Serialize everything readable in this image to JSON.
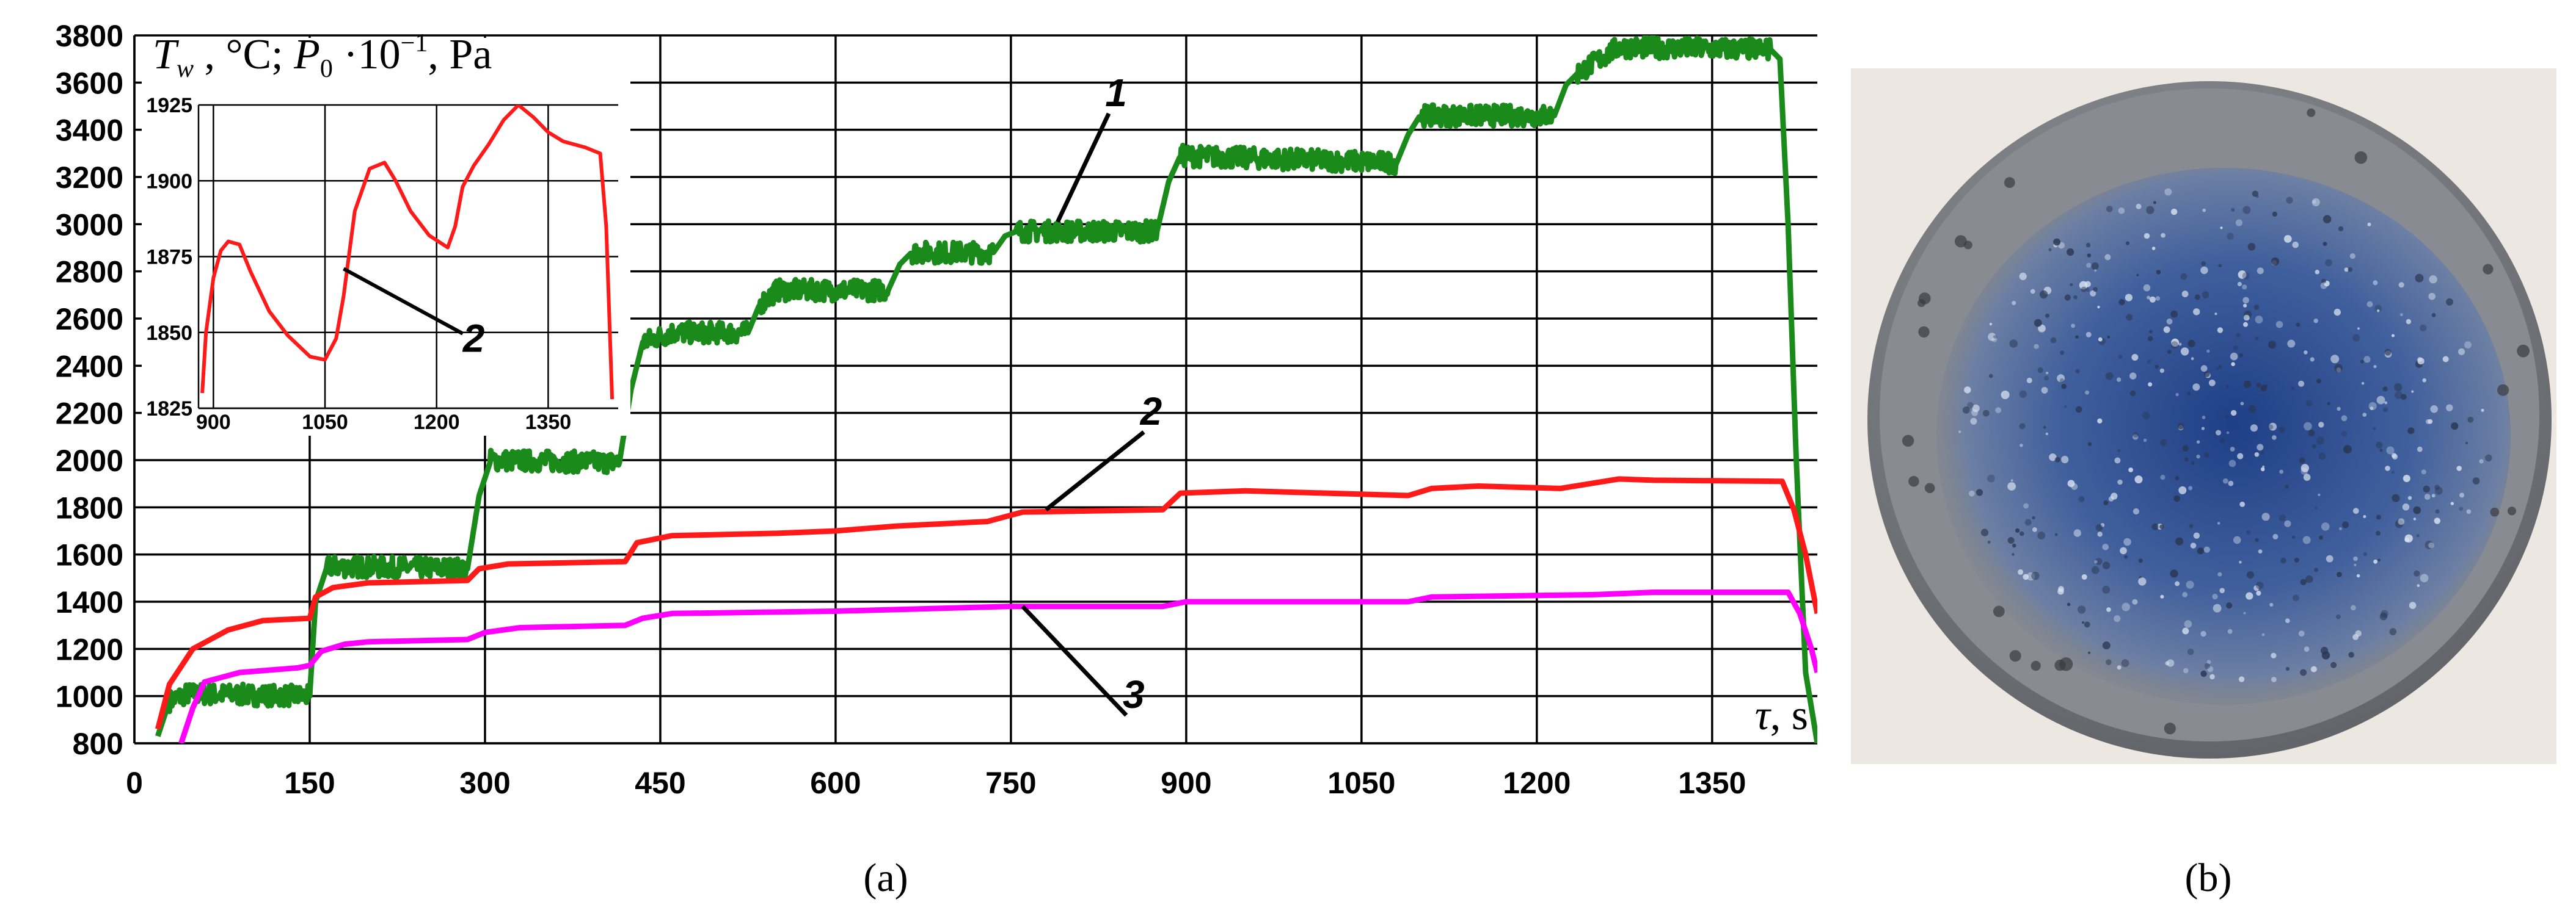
{
  "panels": {
    "a_label": "(a)",
    "b_label": "(b)"
  },
  "colors": {
    "curve_1": "#1a8a1a",
    "curve_2": "#ff1a1a",
    "curve_3": "#ff00ff",
    "photo_blue": "#3f5f9c",
    "photo_gray": "#7d8086"
  },
  "photo": {
    "icon": "sample-photo-icon"
  },
  "chart_data": [
    {
      "type": "line",
      "title": "",
      "ylabel": "T_w, °C; P_0·10⁻¹, Pa",
      "xlabel": "τ, s",
      "xlim": [
        0,
        1440
      ],
      "ylim": [
        800,
        3800
      ],
      "grid": true,
      "x_ticks": [
        0,
        150,
        300,
        450,
        600,
        750,
        900,
        1050,
        1200,
        1350
      ],
      "y_ticks": [
        800,
        1000,
        1200,
        1400,
        1600,
        1800,
        2000,
        2200,
        2400,
        2600,
        2800,
        3000,
        3200,
        3400,
        3600,
        3800
      ],
      "series": [
        {
          "name": "1",
          "noise": 45,
          "x": [
            20,
            30,
            45,
            150,
            155,
            165,
            285,
            295,
            305,
            415,
            425,
            435,
            460,
            525,
            535,
            550,
            645,
            655,
            665,
            735,
            745,
            755,
            875,
            885,
            895,
            1080,
            1090,
            1100,
            1215,
            1225,
            1235,
            1270,
            1400,
            1408,
            1415,
            1422,
            1430,
            1440
          ],
          "y": [
            830,
            980,
            1010,
            1000,
            1400,
            1550,
            1540,
            1850,
            2000,
            1990,
            2300,
            2500,
            2540,
            2540,
            2660,
            2720,
            2720,
            2830,
            2880,
            2880,
            2950,
            2970,
            2970,
            3180,
            3290,
            3260,
            3380,
            3460,
            3460,
            3590,
            3640,
            3750,
            3740,
            3700,
            3000,
            2000,
            1100,
            800
          ]
        },
        {
          "name": "2",
          "noise": 0,
          "x": [
            20,
            30,
            50,
            80,
            110,
            150,
            155,
            170,
            200,
            285,
            295,
            320,
            420,
            430,
            460,
            550,
            600,
            650,
            730,
            760,
            880,
            895,
            950,
            1090,
            1110,
            1150,
            1220,
            1270,
            1300,
            1410,
            1420,
            1430,
            1440
          ],
          "y": [
            860,
            1050,
            1200,
            1280,
            1320,
            1330,
            1420,
            1460,
            1480,
            1490,
            1540,
            1560,
            1570,
            1650,
            1680,
            1690,
            1700,
            1720,
            1740,
            1780,
            1790,
            1860,
            1870,
            1850,
            1880,
            1890,
            1880,
            1920,
            1915,
            1910,
            1790,
            1600,
            1350
          ]
        },
        {
          "name": "3",
          "noise": 0,
          "x": [
            40,
            50,
            60,
            90,
            140,
            150,
            160,
            180,
            200,
            285,
            300,
            330,
            420,
            435,
            460,
            600,
            750,
            880,
            900,
            1090,
            1110,
            1250,
            1300,
            1415,
            1425,
            1435,
            1440
          ],
          "y": [
            800,
            950,
            1060,
            1100,
            1120,
            1130,
            1190,
            1220,
            1230,
            1240,
            1270,
            1290,
            1300,
            1330,
            1350,
            1360,
            1380,
            1380,
            1400,
            1400,
            1420,
            1430,
            1440,
            1440,
            1350,
            1200,
            1100
          ]
        }
      ],
      "annotations": [
        {
          "text": "1",
          "x": 790,
          "y": 3010,
          "label_x": 840,
          "label_y": 3500
        },
        {
          "text": "2",
          "x": 780,
          "y": 1790,
          "label_x": 870,
          "label_y": 2150
        },
        {
          "text": "3",
          "x": 760,
          "y": 1380,
          "label_x": 855,
          "label_y": 950
        }
      ]
    },
    {
      "type": "line",
      "title": "",
      "xlim": [
        880,
        1440
      ],
      "ylim": [
        1825,
        1925
      ],
      "grid": true,
      "x_ticks": [
        900,
        1050,
        1200,
        1350
      ],
      "y_ticks": [
        1825,
        1850,
        1875,
        1900,
        1925
      ],
      "series": [
        {
          "name": "2",
          "x": [
            885,
            890,
            900,
            910,
            920,
            935,
            950,
            975,
            1000,
            1030,
            1050,
            1065,
            1075,
            1090,
            1110,
            1130,
            1145,
            1165,
            1190,
            1215,
            1225,
            1235,
            1250,
            1270,
            1290,
            1310,
            1330,
            1350,
            1370,
            1400,
            1420,
            1428,
            1436
          ],
          "y": [
            1830,
            1850,
            1868,
            1877,
            1880,
            1879,
            1870,
            1857,
            1849,
            1842,
            1841,
            1848,
            1862,
            1890,
            1904,
            1906,
            1900,
            1890,
            1882,
            1878,
            1885,
            1898,
            1905,
            1912,
            1920,
            1925,
            1921,
            1916,
            1913,
            1911,
            1909,
            1885,
            1828
          ]
        }
      ],
      "annotations": [
        {
          "text": "2",
          "x": 1075,
          "y": 1871,
          "label_x": 1250,
          "label_y": 1848
        }
      ]
    }
  ]
}
